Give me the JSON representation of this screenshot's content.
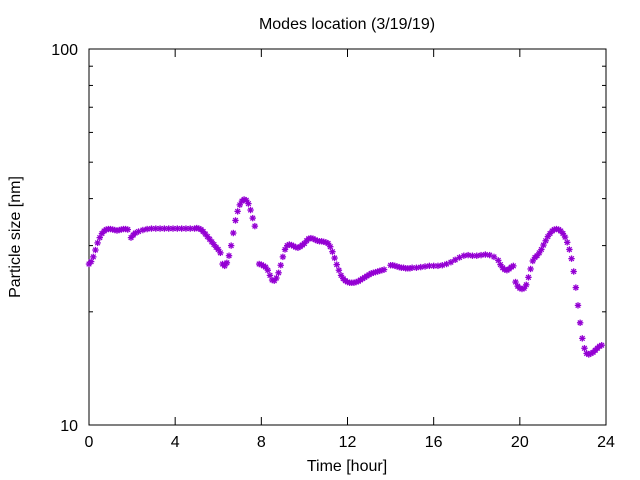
{
  "chart_data": {
    "type": "scatter",
    "title": "Modes location (3/19/19)",
    "xlabel": "Time [hour]",
    "ylabel": "Particle size [nm]",
    "xlim": [
      0,
      24
    ],
    "ylim": [
      10,
      100
    ],
    "yscale": "log",
    "x_ticks": [
      0,
      4,
      8,
      12,
      16,
      20,
      24
    ],
    "y_ticks": [
      10,
      100
    ],
    "grid": false,
    "legend": "none",
    "marker_color": "#9400D3",
    "series": [
      {
        "name": "",
        "x": [
          0.0,
          0.1,
          0.2,
          0.3,
          0.4,
          0.5,
          0.6,
          0.7,
          0.8,
          0.9,
          1.0,
          1.1,
          1.2,
          1.3,
          1.4,
          1.5,
          1.6,
          1.7,
          1.8,
          1.95,
          2.05,
          2.15,
          2.3,
          2.5,
          2.7,
          2.9,
          3.1,
          3.3,
          3.5,
          3.7,
          3.9,
          4.1,
          4.3,
          4.5,
          4.7,
          4.9,
          5.0,
          5.1,
          5.2,
          5.3,
          5.4,
          5.5,
          5.6,
          5.7,
          5.8,
          5.9,
          6.0,
          6.1,
          6.2,
          6.3,
          6.4,
          6.5,
          6.6,
          6.7,
          6.8,
          6.9,
          7.0,
          7.1,
          7.2,
          7.3,
          7.4,
          7.5,
          7.6,
          7.7,
          7.9,
          8.0,
          8.1,
          8.2,
          8.3,
          8.4,
          8.5,
          8.6,
          8.7,
          8.8,
          8.9,
          9.0,
          9.1,
          9.2,
          9.3,
          9.4,
          9.5,
          9.6,
          9.7,
          9.8,
          9.9,
          10.0,
          10.1,
          10.2,
          10.3,
          10.4,
          10.5,
          10.6,
          10.7,
          10.8,
          10.9,
          11.0,
          11.1,
          11.2,
          11.3,
          11.4,
          11.5,
          11.6,
          11.7,
          11.8,
          11.9,
          12.0,
          12.1,
          12.2,
          12.3,
          12.4,
          12.5,
          12.6,
          12.7,
          12.8,
          12.9,
          13.0,
          13.1,
          13.2,
          13.3,
          13.4,
          13.5,
          13.6,
          13.7,
          14.0,
          14.1,
          14.2,
          14.3,
          14.4,
          14.5,
          14.6,
          14.7,
          14.8,
          14.9,
          15.0,
          15.2,
          15.4,
          15.6,
          15.8,
          16.0,
          16.2,
          16.4,
          16.6,
          16.8,
          17.0,
          17.2,
          17.4,
          17.6,
          17.8,
          18.0,
          18.2,
          18.4,
          18.6,
          18.8,
          19.0,
          19.1,
          19.2,
          19.3,
          19.4,
          19.5,
          19.6,
          19.7,
          19.8,
          19.9,
          20.0,
          20.1,
          20.2,
          20.3,
          20.4,
          20.5,
          20.6,
          20.7,
          20.8,
          20.9,
          21.0,
          21.1,
          21.2,
          21.3,
          21.4,
          21.5,
          21.6,
          21.7,
          21.8,
          21.9,
          22.0,
          22.1,
          22.2,
          22.3,
          22.4,
          22.5,
          22.6,
          22.7,
          22.8,
          22.9,
          23.0,
          23.1,
          23.2,
          23.3,
          23.4,
          23.5,
          23.6,
          23.7,
          23.8
        ],
        "y": [
          26.8,
          27.2,
          28.0,
          29.2,
          30.5,
          31.5,
          32.3,
          32.8,
          33.1,
          33.2,
          33.2,
          33.1,
          33.0,
          32.9,
          33.0,
          33.1,
          33.2,
          33.2,
          33.1,
          31.5,
          32.0,
          32.4,
          32.7,
          33.0,
          33.2,
          33.3,
          33.3,
          33.3,
          33.3,
          33.3,
          33.3,
          33.3,
          33.3,
          33.3,
          33.3,
          33.3,
          33.4,
          33.3,
          33.1,
          32.7,
          32.2,
          31.7,
          31.2,
          30.7,
          30.2,
          29.7,
          29.3,
          28.7,
          26.8,
          26.5,
          27.0,
          28.2,
          30.0,
          32.4,
          35.0,
          37.0,
          38.5,
          39.4,
          39.8,
          39.6,
          38.8,
          37.3,
          35.5,
          33.8,
          26.8,
          26.7,
          26.5,
          26.3,
          25.8,
          25.0,
          24.3,
          24.2,
          24.6,
          25.4,
          26.6,
          28.0,
          29.3,
          30.0,
          30.2,
          30.1,
          29.9,
          29.7,
          29.6,
          29.8,
          30.1,
          30.4,
          30.9,
          31.3,
          31.4,
          31.3,
          31.1,
          30.9,
          30.8,
          30.8,
          30.7,
          30.6,
          30.4,
          29.8,
          28.9,
          27.8,
          26.7,
          25.8,
          25.0,
          24.5,
          24.2,
          24.0,
          23.9,
          23.9,
          23.9,
          24.0,
          24.1,
          24.3,
          24.5,
          24.7,
          24.9,
          25.1,
          25.3,
          25.4,
          25.5,
          25.6,
          25.7,
          25.8,
          25.9,
          26.6,
          26.6,
          26.5,
          26.4,
          26.3,
          26.2,
          26.2,
          26.1,
          26.1,
          26.1,
          26.2,
          26.2,
          26.3,
          26.4,
          26.5,
          26.5,
          26.5,
          26.6,
          26.8,
          27.1,
          27.5,
          27.9,
          28.2,
          28.3,
          28.2,
          28.2,
          28.3,
          28.4,
          28.3,
          28.0,
          27.4,
          26.7,
          26.2,
          25.9,
          25.8,
          26.0,
          26.3,
          26.5,
          24.0,
          23.4,
          23.1,
          23.0,
          23.1,
          23.6,
          24.7,
          26.0,
          27.3,
          27.9,
          28.2,
          28.7,
          29.3,
          30.1,
          30.9,
          31.7,
          32.3,
          32.8,
          33.1,
          33.2,
          33.1,
          32.8,
          32.3,
          31.6,
          30.6,
          29.3,
          27.7,
          25.6,
          23.2,
          20.8,
          18.7,
          17.0,
          16.0,
          15.5,
          15.4,
          15.5,
          15.6,
          15.8,
          16.0,
          16.2,
          16.3
        ]
      }
    ]
  }
}
